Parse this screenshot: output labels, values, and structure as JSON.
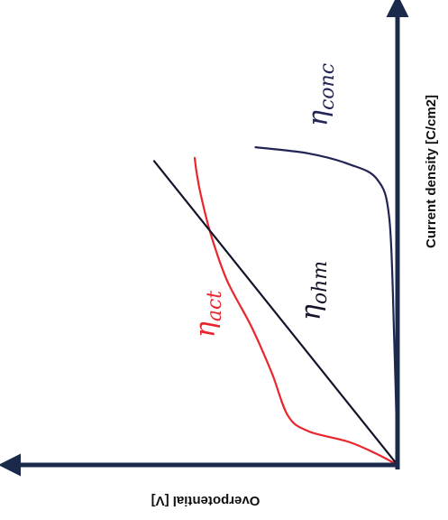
{
  "chart_data": {
    "type": "line",
    "title": "",
    "xlabel": "Overpotential [V]",
    "ylabel": "Current density [C/cm2]",
    "x_direction": "increasing-to-left",
    "origin": "bottom-right",
    "grid": false,
    "legend": "none",
    "axis_color": "#1b2a4a",
    "series": [
      {
        "name": "η_act",
        "label_main": "η",
        "label_sub": "act",
        "color": "#e8262b",
        "points": [
          [
            0,
            0
          ],
          [
            0.05,
            0.035
          ],
          [
            0.12,
            0.075
          ],
          [
            0.22,
            0.11
          ],
          [
            0.27,
            0.16
          ],
          [
            0.31,
            0.3
          ],
          [
            0.36,
            0.45
          ],
          [
            0.42,
            0.6
          ],
          [
            0.46,
            0.75
          ],
          [
            0.485,
            0.88
          ],
          [
            0.495,
            0.95
          ],
          [
            0.5,
            1.0
          ]
        ]
      },
      {
        "name": "η_ohm",
        "label_main": "η",
        "label_sub": "ohm",
        "color": "#14142a",
        "points": [
          [
            0,
            0
          ],
          [
            0.6,
            0.99
          ]
        ]
      },
      {
        "name": "η_conc",
        "label_main": "η",
        "label_sub": "conc",
        "color": "#222455",
        "points": [
          [
            0,
            0
          ],
          [
            0.008,
            0.4
          ],
          [
            0.02,
            0.8
          ],
          [
            0.05,
            0.93
          ],
          [
            0.12,
            0.98
          ],
          [
            0.22,
            1.015
          ],
          [
            0.35,
            1.035
          ]
        ]
      }
    ]
  }
}
